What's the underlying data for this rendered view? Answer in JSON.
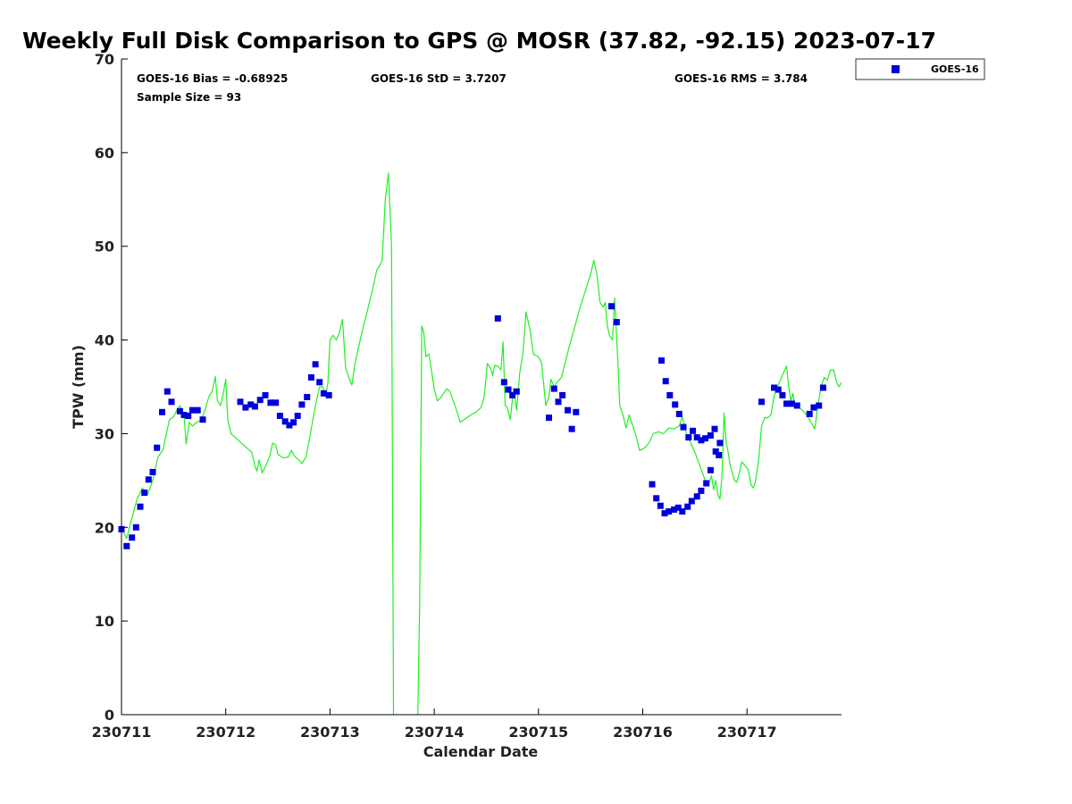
{
  "chart_data": {
    "type": "scatter",
    "title": "Weekly Full Disk Comparison to GPS @ MOSR (37.82, -92.15) 2023-07-17",
    "xlabel": "Calendar Date",
    "ylabel": "TPW (mm)",
    "xlim": [
      0,
      6.92
    ],
    "ylim": [
      0,
      70
    ],
    "x_ticks": [
      {
        "value": 0,
        "label": "230711"
      },
      {
        "value": 1,
        "label": "230712"
      },
      {
        "value": 2,
        "label": "230713"
      },
      {
        "value": 3,
        "label": "230714"
      },
      {
        "value": 4,
        "label": "230715"
      },
      {
        "value": 5,
        "label": "230716"
      },
      {
        "value": 6,
        "label": "230717"
      }
    ],
    "y_ticks": [
      "0",
      "10",
      "20",
      "30",
      "40",
      "50",
      "60",
      "70"
    ],
    "stats": {
      "bias": "GOES-16 Bias = -0.68925",
      "std": "GOES-16 StD = 3.7207",
      "rms": "GOES-16 RMS = 3.784",
      "sample_size": "Sample Size = 93"
    },
    "legend": {
      "label": "GOES-16",
      "position": "top-right"
    },
    "colors": {
      "goes": "#0000dd",
      "gps": "#22ee22"
    },
    "gps_series": {
      "name": "GPS",
      "segments": [
        [
          [
            -0.13,
            20.5
          ],
          [
            -0.08,
            20.2
          ],
          [
            -0.04,
            19.9
          ],
          [
            0.0,
            20.0
          ],
          [
            0.05,
            18.8
          ],
          [
            0.1,
            21.0
          ],
          [
            0.15,
            23.0
          ],
          [
            0.2,
            24.2
          ],
          [
            0.25,
            23.5
          ],
          [
            0.3,
            25.0
          ],
          [
            0.35,
            27.5
          ],
          [
            0.4,
            28.3
          ],
          [
            0.43,
            30.0
          ],
          [
            0.46,
            31.5
          ],
          [
            0.5,
            31.8
          ],
          [
            0.53,
            32.5
          ],
          [
            0.56,
            33.0
          ],
          [
            0.6,
            32.0
          ],
          [
            0.62,
            28.9
          ],
          [
            0.65,
            31.2
          ],
          [
            0.68,
            30.8
          ],
          [
            0.72,
            31.2
          ],
          [
            0.76,
            31.4
          ],
          [
            0.8,
            32.5
          ],
          [
            0.84,
            34.0
          ],
          [
            0.87,
            34.5
          ],
          [
            0.9,
            36.1
          ],
          [
            0.92,
            33.5
          ],
          [
            0.95,
            33.0
          ],
          [
            0.98,
            34.5
          ],
          [
            1.0,
            35.8
          ],
          [
            1.02,
            31.5
          ],
          [
            1.05,
            30.0
          ],
          [
            1.1,
            29.5
          ],
          [
            1.15,
            29.0
          ],
          [
            1.2,
            28.5
          ],
          [
            1.25,
            28.0
          ],
          [
            1.28,
            26.5
          ],
          [
            1.3,
            26.0
          ],
          [
            1.32,
            27.2
          ],
          [
            1.35,
            25.8
          ],
          [
            1.38,
            26.5
          ],
          [
            1.42,
            27.5
          ],
          [
            1.45,
            29.0
          ],
          [
            1.48,
            28.8
          ],
          [
            1.5,
            27.8
          ],
          [
            1.55,
            27.4
          ],
          [
            1.6,
            27.5
          ],
          [
            1.63,
            28.2
          ],
          [
            1.66,
            27.6
          ],
          [
            1.7,
            27.2
          ],
          [
            1.73,
            26.8
          ],
          [
            1.77,
            27.5
          ],
          [
            1.82,
            30.5
          ],
          [
            1.86,
            33.0
          ],
          [
            1.9,
            35.0
          ],
          [
            1.93,
            35.0
          ],
          [
            1.96,
            34.0
          ],
          [
            1.98,
            35.5
          ],
          [
            2.0,
            40.0
          ],
          [
            2.03,
            40.5
          ],
          [
            2.06,
            40.0
          ],
          [
            2.09,
            40.8
          ],
          [
            2.12,
            42.2
          ],
          [
            2.15,
            37.0
          ],
          [
            2.18,
            36.0
          ],
          [
            2.21,
            35.2
          ],
          [
            2.24,
            37.5
          ],
          [
            2.3,
            40.5
          ],
          [
            2.4,
            45.0
          ],
          [
            2.45,
            47.5
          ],
          [
            2.48,
            48.0
          ],
          [
            2.5,
            48.5
          ],
          [
            2.53,
            55.0
          ],
          [
            2.56,
            57.8
          ],
          [
            2.59,
            50.0
          ],
          [
            2.61,
            -2.0
          ]
        ],
        [
          [
            2.84,
            -2.0
          ],
          [
            2.86,
            12.0
          ],
          [
            2.88,
            41.5
          ],
          [
            2.9,
            40.8
          ],
          [
            2.92,
            38.2
          ],
          [
            2.95,
            38.5
          ],
          [
            2.97,
            37.0
          ],
          [
            3.0,
            34.8
          ],
          [
            3.03,
            33.5
          ],
          [
            3.06,
            33.8
          ],
          [
            3.09,
            34.3
          ],
          [
            3.12,
            34.8
          ],
          [
            3.15,
            34.5
          ],
          [
            3.2,
            33.0
          ],
          [
            3.25,
            31.2
          ],
          [
            3.3,
            31.6
          ],
          [
            3.35,
            32.0
          ],
          [
            3.4,
            32.3
          ],
          [
            3.45,
            32.8
          ],
          [
            3.48,
            34.0
          ],
          [
            3.51,
            37.5
          ],
          [
            3.54,
            37.0
          ],
          [
            3.56,
            36.2
          ],
          [
            3.58,
            37.3
          ],
          [
            3.61,
            37.2
          ],
          [
            3.64,
            36.8
          ],
          [
            3.66,
            39.8
          ],
          [
            3.68,
            33.0
          ],
          [
            3.7,
            32.8
          ],
          [
            3.73,
            31.5
          ],
          [
            3.76,
            34.8
          ],
          [
            3.79,
            32.5
          ],
          [
            3.82,
            36.5
          ],
          [
            3.85,
            38.5
          ],
          [
            3.88,
            43.0
          ],
          [
            3.92,
            41.0
          ],
          [
            3.95,
            38.5
          ],
          [
            4.0,
            38.2
          ],
          [
            4.03,
            37.5
          ],
          [
            4.07,
            33.0
          ],
          [
            4.1,
            34.0
          ],
          [
            4.12,
            35.8
          ],
          [
            4.15,
            35.0
          ],
          [
            4.18,
            35.5
          ],
          [
            4.22,
            36.0
          ],
          [
            4.3,
            39.5
          ],
          [
            4.4,
            43.5
          ],
          [
            4.5,
            47.0
          ],
          [
            4.53,
            48.5
          ],
          [
            4.56,
            47.0
          ],
          [
            4.59,
            44.0
          ],
          [
            4.62,
            43.5
          ],
          [
            4.64,
            44.0
          ],
          [
            4.66,
            41.5
          ],
          [
            4.68,
            40.5
          ],
          [
            4.71,
            40.0
          ],
          [
            4.73,
            44.5
          ],
          [
            4.76,
            38.0
          ],
          [
            4.78,
            33.0
          ],
          [
            4.81,
            32.0
          ],
          [
            4.84,
            30.6
          ],
          [
            4.87,
            32.0
          ],
          [
            4.9,
            31.0
          ],
          [
            4.93,
            30.0
          ],
          [
            4.97,
            28.2
          ],
          [
            5.02,
            28.5
          ],
          [
            5.06,
            29.0
          ],
          [
            5.1,
            30.0
          ],
          [
            5.15,
            30.2
          ],
          [
            5.2,
            30.0
          ],
          [
            5.25,
            30.6
          ],
          [
            5.3,
            30.5
          ],
          [
            5.35,
            30.8
          ],
          [
            5.38,
            31.8
          ],
          [
            5.42,
            30.0
          ],
          [
            5.46,
            29.0
          ],
          [
            5.5,
            28.0
          ],
          [
            5.55,
            26.5
          ],
          [
            5.6,
            25.0
          ],
          [
            5.63,
            24.5
          ],
          [
            5.66,
            25.5
          ],
          [
            5.68,
            24.0
          ],
          [
            5.7,
            25.0
          ],
          [
            5.72,
            23.5
          ],
          [
            5.74,
            23.0
          ],
          [
            5.76,
            25.5
          ],
          [
            5.78,
            32.2
          ],
          [
            5.8,
            29.0
          ],
          [
            5.82,
            28.0
          ],
          [
            5.84,
            26.5
          ],
          [
            5.86,
            25.8
          ],
          [
            5.88,
            25.0
          ],
          [
            5.9,
            24.8
          ],
          [
            5.92,
            25.5
          ],
          [
            5.95,
            27.0
          ],
          [
            5.98,
            26.6
          ],
          [
            6.01,
            26.2
          ],
          [
            6.04,
            24.5
          ],
          [
            6.06,
            24.2
          ],
          [
            6.08,
            24.8
          ],
          [
            6.11,
            27.0
          ],
          [
            6.14,
            30.8
          ],
          [
            6.17,
            31.7
          ],
          [
            6.2,
            31.7
          ],
          [
            6.23,
            32.0
          ],
          [
            6.26,
            34.0
          ],
          [
            6.29,
            35.0
          ],
          [
            6.32,
            35.7
          ],
          [
            6.35,
            36.5
          ],
          [
            6.38,
            37.2
          ],
          [
            6.4,
            35.0
          ],
          [
            6.42,
            33.5
          ],
          [
            6.44,
            34.3
          ],
          [
            6.46,
            33.0
          ],
          [
            6.5,
            32.8
          ],
          [
            6.55,
            32.3
          ],
          [
            6.6,
            31.5
          ],
          [
            6.65,
            30.5
          ],
          [
            6.68,
            33.0
          ],
          [
            6.71,
            35.0
          ],
          [
            6.74,
            36.0
          ],
          [
            6.77,
            35.7
          ],
          [
            6.8,
            36.8
          ],
          [
            6.83,
            36.8
          ],
          [
            6.86,
            35.5
          ],
          [
            6.88,
            35.0
          ],
          [
            6.91,
            35.5
          ],
          [
            6.94,
            36.6
          ],
          [
            6.96,
            38.5
          ],
          [
            6.99,
            41.5
          ],
          [
            7.0,
            42.7
          ],
          [
            7.03,
            41.5
          ],
          [
            7.06,
            40.0
          ],
          [
            7.1,
            38.5
          ],
          [
            7.14,
            38.0
          ],
          [
            7.16,
            36.3
          ],
          [
            7.18,
            36.0
          ],
          [
            7.2,
            37.5
          ],
          [
            7.23,
            44.0
          ],
          [
            7.25,
            45.9
          ],
          [
            7.27,
            42.0
          ],
          [
            7.3,
            41.5
          ],
          [
            7.33,
            41.0
          ],
          [
            7.36,
            40.5
          ],
          [
            7.38,
            39.5
          ]
        ]
      ]
    },
    "goes_points": [
      [
        0.0,
        19.8
      ],
      [
        0.05,
        18.0
      ],
      [
        0.1,
        18.9
      ],
      [
        0.14,
        20.0
      ],
      [
        0.18,
        22.2
      ],
      [
        0.22,
        23.7
      ],
      [
        0.26,
        25.1
      ],
      [
        0.3,
        25.9
      ],
      [
        0.34,
        28.5
      ],
      [
        0.39,
        32.3
      ],
      [
        0.44,
        34.5
      ],
      [
        0.48,
        33.4
      ],
      [
        0.56,
        32.4
      ],
      [
        0.6,
        32.0
      ],
      [
        0.64,
        31.9
      ],
      [
        0.68,
        32.5
      ],
      [
        0.73,
        32.5
      ],
      [
        0.78,
        31.5
      ],
      [
        1.14,
        33.4
      ],
      [
        1.19,
        32.8
      ],
      [
        1.24,
        33.1
      ],
      [
        1.28,
        32.9
      ],
      [
        1.33,
        33.6
      ],
      [
        1.38,
        34.1
      ],
      [
        1.43,
        33.3
      ],
      [
        1.48,
        33.3
      ],
      [
        1.52,
        31.9
      ],
      [
        1.57,
        31.3
      ],
      [
        1.61,
        30.9
      ],
      [
        1.65,
        31.2
      ],
      [
        1.69,
        31.9
      ],
      [
        1.73,
        33.1
      ],
      [
        1.78,
        33.9
      ],
      [
        1.82,
        36.0
      ],
      [
        1.86,
        37.4
      ],
      [
        1.9,
        35.5
      ],
      [
        1.94,
        34.3
      ],
      [
        1.99,
        34.1
      ],
      [
        3.61,
        42.3
      ],
      [
        3.67,
        35.5
      ],
      [
        3.71,
        34.7
      ],
      [
        3.75,
        34.1
      ],
      [
        3.79,
        34.5
      ],
      [
        4.1,
        31.7
      ],
      [
        4.15,
        34.8
      ],
      [
        4.19,
        33.4
      ],
      [
        4.23,
        34.1
      ],
      [
        4.28,
        32.5
      ],
      [
        4.32,
        30.5
      ],
      [
        4.36,
        32.3
      ],
      [
        4.7,
        43.6
      ],
      [
        4.75,
        41.9
      ],
      [
        5.18,
        37.8
      ],
      [
        5.22,
        35.6
      ],
      [
        5.26,
        34.1
      ],
      [
        5.31,
        33.1
      ],
      [
        5.35,
        32.1
      ],
      [
        5.39,
        30.7
      ],
      [
        5.44,
        29.6
      ],
      [
        5.48,
        30.3
      ],
      [
        5.52,
        29.6
      ],
      [
        5.56,
        29.3
      ],
      [
        5.6,
        29.5
      ],
      [
        5.65,
        29.8
      ],
      [
        5.69,
        30.5
      ],
      [
        5.73,
        27.7
      ],
      [
        5.09,
        24.6
      ],
      [
        5.13,
        23.1
      ],
      [
        5.17,
        22.3
      ],
      [
        5.21,
        21.5
      ],
      [
        5.25,
        21.7
      ],
      [
        5.3,
        21.9
      ],
      [
        5.34,
        22.1
      ],
      [
        5.38,
        21.7
      ],
      [
        5.43,
        22.2
      ],
      [
        5.47,
        22.8
      ],
      [
        5.52,
        23.3
      ],
      [
        5.56,
        23.9
      ],
      [
        5.61,
        24.7
      ],
      [
        5.65,
        26.1
      ],
      [
        5.7,
        28.1
      ],
      [
        5.74,
        29.0
      ],
      [
        6.14,
        33.4
      ],
      [
        6.26,
        34.9
      ],
      [
        6.3,
        34.7
      ],
      [
        6.34,
        34.1
      ],
      [
        6.38,
        33.2
      ],
      [
        6.43,
        33.2
      ],
      [
        6.48,
        33.0
      ],
      [
        6.6,
        32.1
      ],
      [
        6.64,
        32.8
      ],
      [
        6.69,
        33.0
      ],
      [
        6.73,
        34.9
      ]
    ]
  }
}
